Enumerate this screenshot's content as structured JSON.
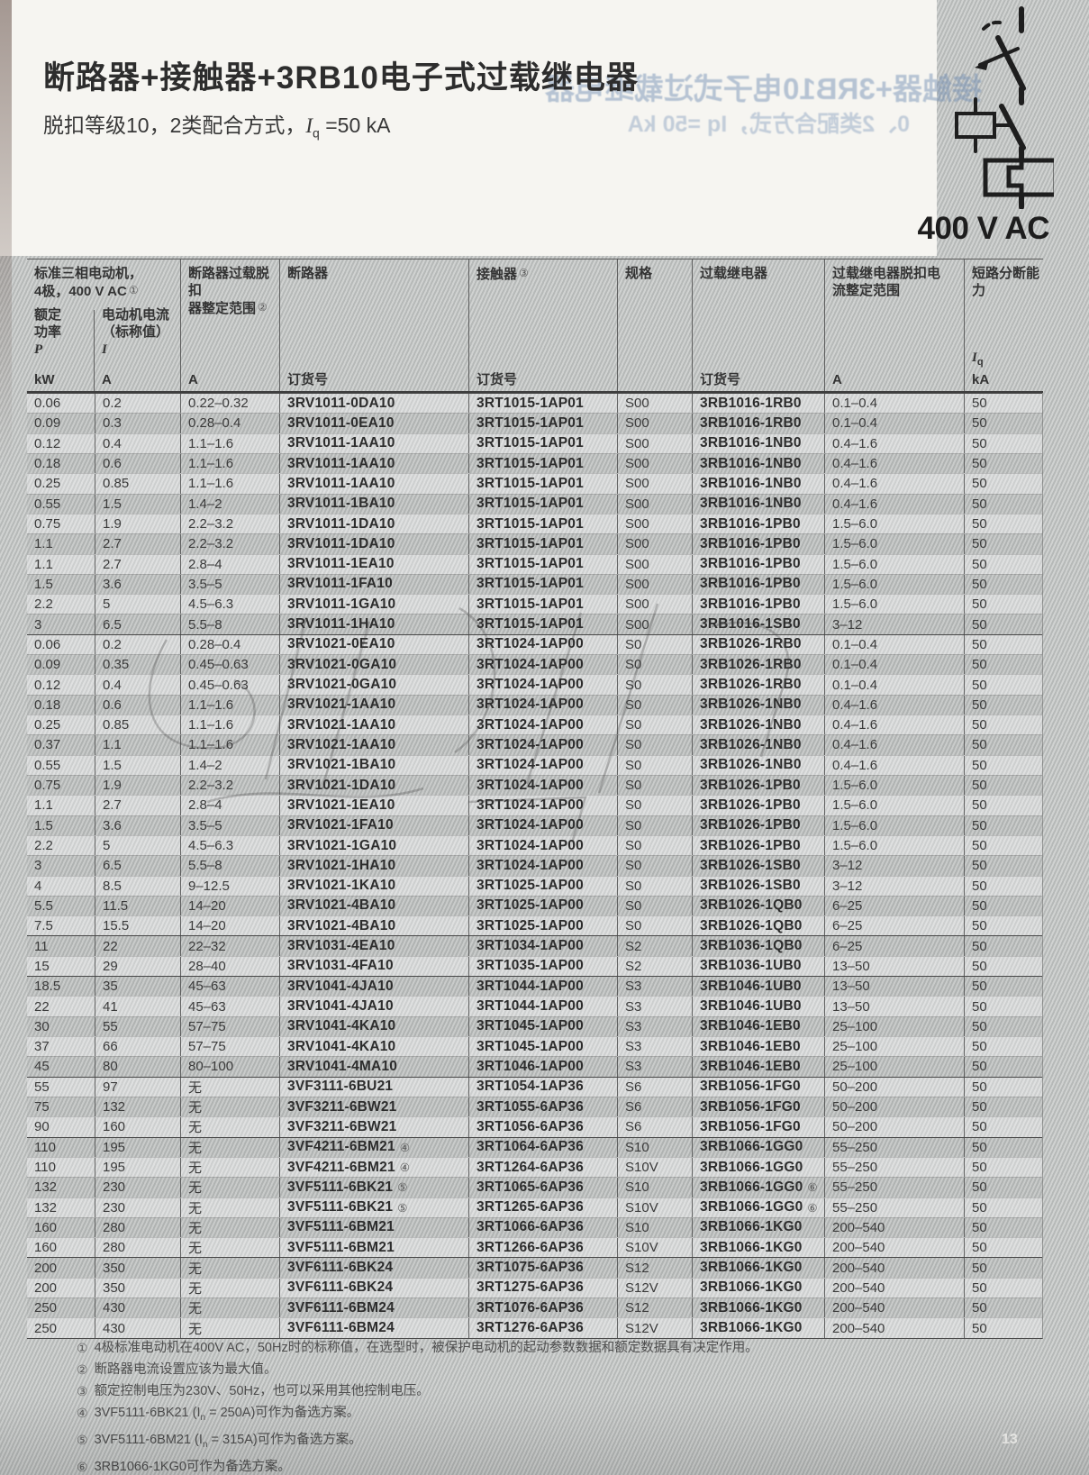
{
  "page": {
    "title": "断路器+接触器+3RB10电子式过载继电器",
    "subtitle_prefix": "脱扣等级10，2类配合方式，",
    "subtitle_sym": "I",
    "subtitle_sub": "q",
    "subtitle_suffix": " =50 kA",
    "voltage_label": "400 V AC",
    "page_number": "13",
    "ghost_line1": "接触器+3RB10电子式过载继电器",
    "ghost_line2": "0、2类配合方式，Iq =50 kA"
  },
  "icons": {
    "circuit_diagram": "breaker-contactor-overload-series-symbol"
  },
  "table": {
    "header": {
      "motor_group_line1": "标准三相电动机，",
      "motor_group_line2": "4极，400 V AC",
      "motor_group_fn": "①",
      "power_l1": "额定",
      "power_l2": "功率",
      "power_sym": "P",
      "power_unit": "kW",
      "current_l1": "电动机电流",
      "current_l2": "（标称值）",
      "current_sym": "I",
      "current_unit": "A",
      "cb_range_l1": "断路器过载脱扣",
      "cb_range_l2": "器整定范围",
      "cb_range_fn": "②",
      "cb_range_unit": "A",
      "cb_title": "断路器",
      "cb_unit": "订货号",
      "ct_title": "接触器",
      "ct_fn": "③",
      "ct_unit": "订货号",
      "size_title": "规格",
      "ol_title": "过载继电器",
      "ol_unit": "订货号",
      "ol_range_l1": "过载继电器脱扣电",
      "ol_range_l2": "流整定范围",
      "ol_range_unit": "A",
      "sc_title": "短路分断能力",
      "sc_sym": "I",
      "sc_sym_sub": "q",
      "sc_unit": "kA"
    },
    "group_starts": [
      0,
      12,
      27,
      29,
      34,
      37,
      43
    ],
    "rows": [
      [
        "0.06",
        "0.2",
        "0.22–0.32",
        "3RV1011-0DA10",
        "",
        "3RT1015-1AP01",
        "S00",
        "3RB1016-1RB0",
        "",
        "0.1–0.4",
        "50"
      ],
      [
        "0.09",
        "0.3",
        "0.28–0.4",
        "3RV1011-0EA10",
        "",
        "3RT1015-1AP01",
        "S00",
        "3RB1016-1RB0",
        "",
        "0.1–0.4",
        "50"
      ],
      [
        "0.12",
        "0.4",
        "1.1–1.6",
        "3RV1011-1AA10",
        "",
        "3RT1015-1AP01",
        "S00",
        "3RB1016-1NB0",
        "",
        "0.4–1.6",
        "50"
      ],
      [
        "0.18",
        "0.6",
        "1.1–1.6",
        "3RV1011-1AA10",
        "",
        "3RT1015-1AP01",
        "S00",
        "3RB1016-1NB0",
        "",
        "0.4–1.6",
        "50"
      ],
      [
        "0.25",
        "0.85",
        "1.1–1.6",
        "3RV1011-1AA10",
        "",
        "3RT1015-1AP01",
        "S00",
        "3RB1016-1NB0",
        "",
        "0.4–1.6",
        "50"
      ],
      [
        "0.55",
        "1.5",
        "1.4–2",
        "3RV1011-1BA10",
        "",
        "3RT1015-1AP01",
        "S00",
        "3RB1016-1NB0",
        "",
        "0.4–1.6",
        "50"
      ],
      [
        "0.75",
        "1.9",
        "2.2–3.2",
        "3RV1011-1DA10",
        "",
        "3RT1015-1AP01",
        "S00",
        "3RB1016-1PB0",
        "",
        "1.5–6.0",
        "50"
      ],
      [
        "1.1",
        "2.7",
        "2.2–3.2",
        "3RV1011-1DA10",
        "",
        "3RT1015-1AP01",
        "S00",
        "3RB1016-1PB0",
        "",
        "1.5–6.0",
        "50"
      ],
      [
        "1.1",
        "2.7",
        "2.8–4",
        "3RV1011-1EA10",
        "",
        "3RT1015-1AP01",
        "S00",
        "3RB1016-1PB0",
        "",
        "1.5–6.0",
        "50"
      ],
      [
        "1.5",
        "3.6",
        "3.5–5",
        "3RV1011-1FA10",
        "",
        "3RT1015-1AP01",
        "S00",
        "3RB1016-1PB0",
        "",
        "1.5–6.0",
        "50"
      ],
      [
        "2.2",
        "5",
        "4.5–6.3",
        "3RV1011-1GA10",
        "",
        "3RT1015-1AP01",
        "S00",
        "3RB1016-1PB0",
        "",
        "1.5–6.0",
        "50"
      ],
      [
        "3",
        "6.5",
        "5.5–8",
        "3RV1011-1HA10",
        "",
        "3RT1015-1AP01",
        "S00",
        "3RB1016-1SB0",
        "",
        "3–12",
        "50"
      ],
      [
        "0.06",
        "0.2",
        "0.28–0.4",
        "3RV1021-0EA10",
        "",
        "3RT1024-1AP00",
        "S0",
        "3RB1026-1RB0",
        "",
        "0.1–0.4",
        "50"
      ],
      [
        "0.09",
        "0.35",
        "0.45–0.63",
        "3RV1021-0GA10",
        "",
        "3RT1024-1AP00",
        "S0",
        "3RB1026-1RB0",
        "",
        "0.1–0.4",
        "50"
      ],
      [
        "0.12",
        "0.4",
        "0.45–0.63",
        "3RV1021-0GA10",
        "",
        "3RT1024-1AP00",
        "S0",
        "3RB1026-1RB0",
        "",
        "0.1–0.4",
        "50"
      ],
      [
        "0.18",
        "0.6",
        "1.1–1.6",
        "3RV1021-1AA10",
        "",
        "3RT1024-1AP00",
        "S0",
        "3RB1026-1NB0",
        "",
        "0.4–1.6",
        "50"
      ],
      [
        "0.25",
        "0.85",
        "1.1–1.6",
        "3RV1021-1AA10",
        "",
        "3RT1024-1AP00",
        "S0",
        "3RB1026-1NB0",
        "",
        "0.4–1.6",
        "50"
      ],
      [
        "0.37",
        "1.1",
        "1.1–1.6",
        "3RV1021-1AA10",
        "",
        "3RT1024-1AP00",
        "S0",
        "3RB1026-1NB0",
        "",
        "0.4–1.6",
        "50"
      ],
      [
        "0.55",
        "1.5",
        "1.4–2",
        "3RV1021-1BA10",
        "",
        "3RT1024-1AP00",
        "S0",
        "3RB1026-1NB0",
        "",
        "0.4–1.6",
        "50"
      ],
      [
        "0.75",
        "1.9",
        "2.2–3.2",
        "3RV1021-1DA10",
        "",
        "3RT1024-1AP00",
        "S0",
        "3RB1026-1PB0",
        "",
        "1.5–6.0",
        "50"
      ],
      [
        "1.1",
        "2.7",
        "2.8–4",
        "3RV1021-1EA10",
        "",
        "3RT1024-1AP00",
        "S0",
        "3RB1026-1PB0",
        "",
        "1.5–6.0",
        "50"
      ],
      [
        "1.5",
        "3.6",
        "3.5–5",
        "3RV1021-1FA10",
        "",
        "3RT1024-1AP00",
        "S0",
        "3RB1026-1PB0",
        "",
        "1.5–6.0",
        "50"
      ],
      [
        "2.2",
        "5",
        "4.5–6.3",
        "3RV1021-1GA10",
        "",
        "3RT1024-1AP00",
        "S0",
        "3RB1026-1PB0",
        "",
        "1.5–6.0",
        "50"
      ],
      [
        "3",
        "6.5",
        "5.5–8",
        "3RV1021-1HA10",
        "",
        "3RT1024-1AP00",
        "S0",
        "3RB1026-1SB0",
        "",
        "3–12",
        "50"
      ],
      [
        "4",
        "8.5",
        "9–12.5",
        "3RV1021-1KA10",
        "",
        "3RT1025-1AP00",
        "S0",
        "3RB1026-1SB0",
        "",
        "3–12",
        "50"
      ],
      [
        "5.5",
        "11.5",
        "14–20",
        "3RV1021-4BA10",
        "",
        "3RT1025-1AP00",
        "S0",
        "3RB1026-1QB0",
        "",
        "6–25",
        "50"
      ],
      [
        "7.5",
        "15.5",
        "14–20",
        "3RV1021-4BA10",
        "",
        "3RT1025-1AP00",
        "S0",
        "3RB1026-1QB0",
        "",
        "6–25",
        "50"
      ],
      [
        "11",
        "22",
        "22–32",
        "3RV1031-4EA10",
        "",
        "3RT1034-1AP00",
        "S2",
        "3RB1036-1QB0",
        "",
        "6–25",
        "50"
      ],
      [
        "15",
        "29",
        "28–40",
        "3RV1031-4FA10",
        "",
        "3RT1035-1AP00",
        "S2",
        "3RB1036-1UB0",
        "",
        "13–50",
        "50"
      ],
      [
        "18.5",
        "35",
        "45–63",
        "3RV1041-4JA10",
        "",
        "3RT1044-1AP00",
        "S3",
        "3RB1046-1UB0",
        "",
        "13–50",
        "50"
      ],
      [
        "22",
        "41",
        "45–63",
        "3RV1041-4JA10",
        "",
        "3RT1044-1AP00",
        "S3",
        "3RB1046-1UB0",
        "",
        "13–50",
        "50"
      ],
      [
        "30",
        "55",
        "57–75",
        "3RV1041-4KA10",
        "",
        "3RT1045-1AP00",
        "S3",
        "3RB1046-1EB0",
        "",
        "25–100",
        "50"
      ],
      [
        "37",
        "66",
        "57–75",
        "3RV1041-4KA10",
        "",
        "3RT1045-1AP00",
        "S3",
        "3RB1046-1EB0",
        "",
        "25–100",
        "50"
      ],
      [
        "45",
        "80",
        "80–100",
        "3RV1041-4MA10",
        "",
        "3RT1046-1AP00",
        "S3",
        "3RB1046-1EB0",
        "",
        "25–100",
        "50"
      ],
      [
        "55",
        "97",
        "无",
        "3VF3111-6BU21",
        "",
        "3RT1054-1AP36",
        "S6",
        "3RB1056-1FG0",
        "",
        "50–200",
        "50"
      ],
      [
        "75",
        "132",
        "无",
        "3VF3211-6BW21",
        "",
        "3RT1055-6AP36",
        "S6",
        "3RB1056-1FG0",
        "",
        "50–200",
        "50"
      ],
      [
        "90",
        "160",
        "无",
        "3VF3211-6BW21",
        "",
        "3RT1056-6AP36",
        "S6",
        "3RB1056-1FG0",
        "",
        "50–200",
        "50"
      ],
      [
        "110",
        "195",
        "无",
        "3VF4211-6BM21",
        "④",
        "3RT1064-6AP36",
        "S10",
        "3RB1066-1GG0",
        "",
        "55–250",
        "50"
      ],
      [
        "110",
        "195",
        "无",
        "3VF4211-6BM21",
        "④",
        "3RT1264-6AP36",
        "S10V",
        "3RB1066-1GG0",
        "",
        "55–250",
        "50"
      ],
      [
        "132",
        "230",
        "无",
        "3VF5111-6BK21",
        "⑤",
        "3RT1065-6AP36",
        "S10",
        "3RB1066-1GG0",
        "⑥",
        "55–250",
        "50"
      ],
      [
        "132",
        "230",
        "无",
        "3VF5111-6BK21",
        "⑤",
        "3RT1265-6AP36",
        "S10V",
        "3RB1066-1GG0",
        "⑥",
        "55–250",
        "50"
      ],
      [
        "160",
        "280",
        "无",
        "3VF5111-6BM21",
        "",
        "3RT1066-6AP36",
        "S10",
        "3RB1066-1KG0",
        "",
        "200–540",
        "50"
      ],
      [
        "160",
        "280",
        "无",
        "3VF5111-6BM21",
        "",
        "3RT1266-6AP36",
        "S10V",
        "3RB1066-1KG0",
        "",
        "200–540",
        "50"
      ],
      [
        "200",
        "350",
        "无",
        "3VF6111-6BK24",
        "",
        "3RT1075-6AP36",
        "S12",
        "3RB1066-1KG0",
        "",
        "200–540",
        "50"
      ],
      [
        "200",
        "350",
        "无",
        "3VF6111-6BK24",
        "",
        "3RT1275-6AP36",
        "S12V",
        "3RB1066-1KG0",
        "",
        "200–540",
        "50"
      ],
      [
        "250",
        "430",
        "无",
        "3VF6111-6BM24",
        "",
        "3RT1076-6AP36",
        "S12",
        "3RB1066-1KG0",
        "",
        "200–540",
        "50"
      ],
      [
        "250",
        "430",
        "无",
        "3VF6111-6BM24",
        "",
        "3RT1276-6AP36",
        "S12V",
        "3RB1066-1KG0",
        "",
        "200–540",
        "50"
      ]
    ]
  },
  "footnotes": [
    {
      "m": "①",
      "pre": "4极标准电动机在400V AC，50Hz时的标称值，在选型时，被保护电动机的起动参数数据和额定数据具有决定作用。"
    },
    {
      "m": "②",
      "pre": "断路器电流设置应该为最大值。"
    },
    {
      "m": "③",
      "pre": "额定控制电压为230V、50Hz，也可以采用其他控制电压。"
    },
    {
      "m": "④",
      "pre": "3VF5111-6BK21 (I",
      "sub": "n",
      "post": " = 250A)可作为备选方案。"
    },
    {
      "m": "⑤",
      "pre": "3VF5111-6BM21 (I",
      "sub": "n",
      "post": " = 315A)可作为备选方案。"
    },
    {
      "m": "⑥",
      "pre": "3RB1066-1KG0可作为备选方案。"
    }
  ]
}
